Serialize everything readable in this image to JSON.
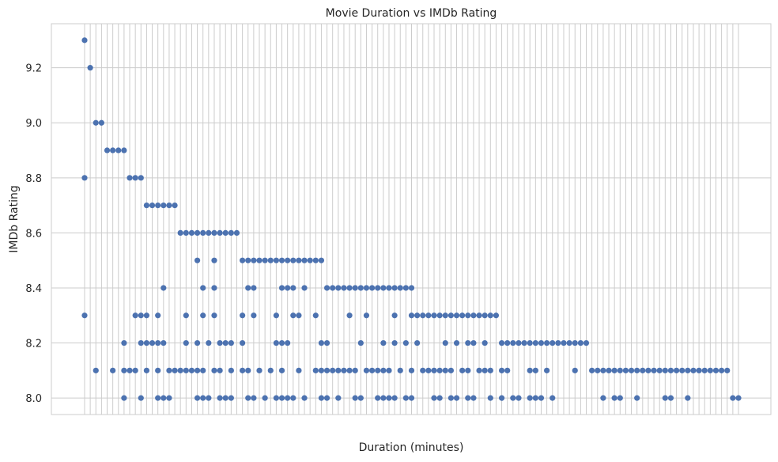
{
  "chart_data": {
    "type": "scatter",
    "title": "Movie Duration vs IMDb Rating",
    "xlabel": "Duration (minutes)",
    "ylabel": "IMDb Rating",
    "ylim": [
      7.94,
      9.36
    ],
    "yticks": [
      8.0,
      8.2,
      8.4,
      8.6,
      8.8,
      9.0,
      9.2
    ],
    "ytick_labels": [
      "8.0",
      "8.2",
      "8.4",
      "8.6",
      "8.8",
      "9.0",
      "9.2"
    ],
    "x_axis": "categorical",
    "x_categories_count": 117,
    "grid": true,
    "legend": "none",
    "point_color": "#4c72b0",
    "ratings_by_category": [
      [
        9.3,
        8.8,
        8.3
      ],
      [
        9.2
      ],
      [
        9.0,
        8.1
      ],
      [
        9.0
      ],
      [
        8.9
      ],
      [
        8.9,
        8.1
      ],
      [
        8.9
      ],
      [
        8.9,
        8.2,
        8.1,
        8.0
      ],
      [
        8.8,
        8.1
      ],
      [
        8.8,
        8.3,
        8.1
      ],
      [
        8.8,
        8.3,
        8.2,
        8.0
      ],
      [
        8.7,
        8.3,
        8.2,
        8.1
      ],
      [
        8.7,
        8.2
      ],
      [
        8.7,
        8.3,
        8.2,
        8.1,
        8.0
      ],
      [
        8.7,
        8.4,
        8.2,
        8.0
      ],
      [
        8.7,
        8.1,
        8.0
      ],
      [
        8.7,
        8.1
      ],
      [
        8.6,
        8.1
      ],
      [
        8.6,
        8.3,
        8.2,
        8.1
      ],
      [
        8.6,
        8.1
      ],
      [
        8.6,
        8.5,
        8.2,
        8.1,
        8.0
      ],
      [
        8.6,
        8.4,
        8.3,
        8.1,
        8.0
      ],
      [
        8.6,
        8.2,
        8.0
      ],
      [
        8.6,
        8.5,
        8.4,
        8.3,
        8.1
      ],
      [
        8.6,
        8.2,
        8.1,
        8.0
      ],
      [
        8.6,
        8.2,
        8.0
      ],
      [
        8.6,
        8.2,
        8.1,
        8.0
      ],
      [
        8.6
      ],
      [
        8.5,
        8.3,
        8.2,
        8.1
      ],
      [
        8.5,
        8.4,
        8.1,
        8.0
      ],
      [
        8.5,
        8.4,
        8.3,
        8.0
      ],
      [
        8.5,
        8.1
      ],
      [
        8.5,
        8.0
      ],
      [
        8.5,
        8.1
      ],
      [
        8.5,
        8.3,
        8.2,
        8.0
      ],
      [
        8.5,
        8.4,
        8.2,
        8.1,
        8.0
      ],
      [
        8.5,
        8.4,
        8.2,
        8.0
      ],
      [
        8.5,
        8.4,
        8.3,
        8.0
      ],
      [
        8.5,
        8.3,
        8.1
      ],
      [
        8.5,
        8.4,
        8.0
      ],
      [
        8.5
      ],
      [
        8.5,
        8.3,
        8.1
      ],
      [
        8.5,
        8.2,
        8.1,
        8.0
      ],
      [
        8.4,
        8.2,
        8.1,
        8.0
      ],
      [
        8.4,
        8.1
      ],
      [
        8.4,
        8.1,
        8.0
      ],
      [
        8.4,
        8.1
      ],
      [
        8.4,
        8.3,
        8.1
      ],
      [
        8.4,
        8.1,
        8.0
      ],
      [
        8.4,
        8.2,
        8.0
      ],
      [
        8.4,
        8.3,
        8.1
      ],
      [
        8.4,
        8.1
      ],
      [
        8.4,
        8.1,
        8.0
      ],
      [
        8.4,
        8.2,
        8.1,
        8.0
      ],
      [
        8.4,
        8.1,
        8.0
      ],
      [
        8.4,
        8.3,
        8.2,
        8.0
      ],
      [
        8.4,
        8.1
      ],
      [
        8.4,
        8.2,
        8.0
      ],
      [
        8.4,
        8.3,
        8.1,
        8.0
      ],
      [
        8.3,
        8.2
      ],
      [
        8.3,
        8.1
      ],
      [
        8.3,
        8.1
      ],
      [
        8.3,
        8.1,
        8.0
      ],
      [
        8.3,
        8.1,
        8.0
      ],
      [
        8.3,
        8.2,
        8.1
      ],
      [
        8.3,
        8.1,
        8.0
      ],
      [
        8.3,
        8.2,
        8.0
      ],
      [
        8.3,
        8.1
      ],
      [
        8.3,
        8.2,
        8.1,
        8.0
      ],
      [
        8.3,
        8.2,
        8.0
      ],
      [
        8.3,
        8.1
      ],
      [
        8.3,
        8.2,
        8.1
      ],
      [
        8.3,
        8.1,
        8.0
      ],
      [
        8.3
      ],
      [
        8.2,
        8.1,
        8.0
      ],
      [
        8.2,
        8.1
      ],
      [
        8.2,
        8.0
      ],
      [
        8.2,
        8.0
      ],
      [
        8.2
      ],
      [
        8.2,
        8.1,
        8.0
      ],
      [
        8.2,
        8.1,
        8.0
      ],
      [
        8.2,
        8.0
      ],
      [
        8.2,
        8.1
      ],
      [
        8.2,
        8.0
      ],
      [
        8.2
      ],
      [
        8.2
      ],
      [
        8.2
      ],
      [
        8.2,
        8.1
      ],
      [
        8.2
      ],
      [
        8.2
      ],
      [
        8.1
      ],
      [
        8.1
      ],
      [
        8.1,
        8.0
      ],
      [
        8.1
      ],
      [
        8.1,
        8.0
      ],
      [
        8.1,
        8.0
      ],
      [
        8.1
      ],
      [
        8.1
      ],
      [
        8.1,
        8.0
      ],
      [
        8.1
      ],
      [
        8.1
      ],
      [
        8.1
      ],
      [
        8.1
      ],
      [
        8.1,
        8.0
      ],
      [
        8.1,
        8.0
      ],
      [
        8.1
      ],
      [
        8.1
      ],
      [
        8.1,
        8.0
      ],
      [
        8.1
      ],
      [
        8.1
      ],
      [
        8.1
      ],
      [
        8.1
      ],
      [
        8.1
      ],
      [
        8.1
      ],
      [
        8.1
      ],
      [
        8.0
      ],
      [
        8.0
      ]
    ]
  }
}
